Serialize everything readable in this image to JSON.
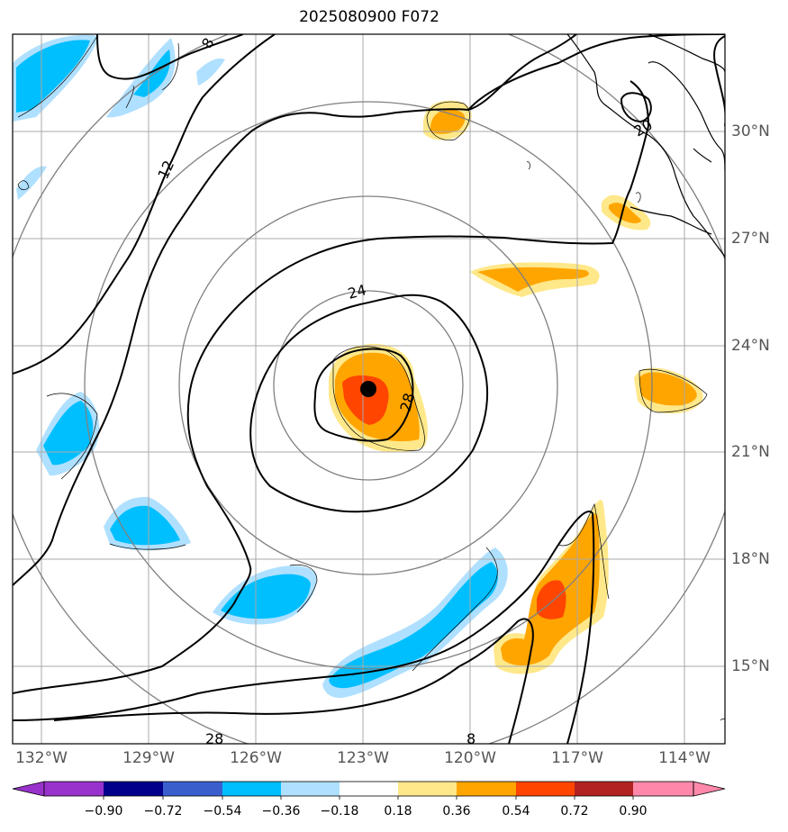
{
  "title": "2025080900 F072",
  "storm_center": {
    "lon": -122.8,
    "lat": 22.7
  },
  "range_rings_deg": [
    3,
    6,
    9,
    12
  ],
  "map_extent": {
    "lon_min": -132.8,
    "lon_max": -112.7,
    "lat_min": 12.6,
    "lat_max": 32.7
  },
  "lon_ticks": [
    {
      "value": -132,
      "label": "132°W"
    },
    {
      "value": -129,
      "label": "129°W"
    },
    {
      "value": -126,
      "label": "126°W"
    },
    {
      "value": -123,
      "label": "123°W"
    },
    {
      "value": -120,
      "label": "120°W"
    },
    {
      "value": -117,
      "label": "117°W"
    },
    {
      "value": -114,
      "label": "114°W"
    }
  ],
  "lat_ticks": [
    {
      "value": 30,
      "label": "30°N"
    },
    {
      "value": 27,
      "label": "27°N"
    },
    {
      "value": 24,
      "label": "24°N"
    },
    {
      "value": 21,
      "label": "21°N"
    },
    {
      "value": 18,
      "label": "18°N"
    },
    {
      "value": 15,
      "label": "15°N"
    }
  ],
  "contour_labels": [
    {
      "text": "8"
    },
    {
      "text": "12"
    },
    {
      "text": "20"
    },
    {
      "text": "24"
    },
    {
      "text": "28"
    },
    {
      "text": "28"
    },
    {
      "text": "8"
    }
  ],
  "colorbar": {
    "colors": [
      "#9932cc",
      "#00008b",
      "#3a5fcd",
      "#00bfff",
      "#b0e0ff",
      "#ffffff",
      "#ffe88a",
      "#ffa500",
      "#ff4500",
      "#b22222",
      "#ff88aa"
    ],
    "tick_labels": [
      "−0.90",
      "−0.72",
      "−0.54",
      "−0.36",
      "−0.18",
      "0.18",
      "0.36",
      "0.54",
      "0.72",
      "0.90"
    ]
  },
  "colors": {
    "light_blue": "#b0e0ff",
    "blue": "#00bfff",
    "yellow": "#ffe88a",
    "orange": "#ffa500",
    "red": "#ff4500",
    "ring": "#808080",
    "grid": "#a9a9a9"
  }
}
